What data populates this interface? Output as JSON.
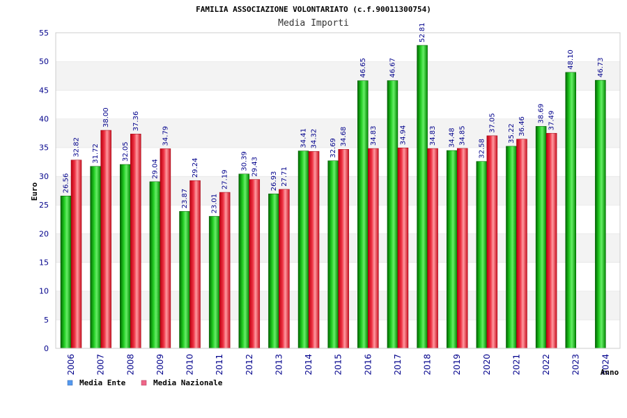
{
  "chart_data": {
    "type": "bar",
    "title": "FAMILIA ASSOCIAZIONE VOLONTARIATO (c.f.90011300754)",
    "subtitle": "Media Importi",
    "xlabel": "Anno",
    "ylabel": "Euro",
    "ylim": [
      0,
      55
    ],
    "yticks": [
      0,
      5,
      10,
      15,
      20,
      25,
      30,
      35,
      40,
      45,
      50,
      55
    ],
    "grid": "horizontal-bands",
    "legend_position": "bottom-left",
    "categories": [
      "2006",
      "2007",
      "2008",
      "2009",
      "2010",
      "2011",
      "2012",
      "2013",
      "2014",
      "2015",
      "2016",
      "2017",
      "2018",
      "2019",
      "2020",
      "2021",
      "2022",
      "2023",
      "2024"
    ],
    "series": [
      {
        "name": "Media Ente",
        "color": "#00b000",
        "legend_color": "#5599ee",
        "values": [
          26.56,
          31.72,
          32.05,
          29.04,
          23.87,
          23.01,
          30.39,
          26.93,
          34.41,
          32.69,
          46.65,
          46.67,
          52.81,
          34.48,
          32.58,
          35.22,
          38.69,
          48.1,
          46.73
        ],
        "labels": [
          "26.56",
          "31.72",
          "32.05",
          "29.04",
          "23.87",
          "23.01",
          "30.39",
          "26.93",
          "34.41",
          "32.69",
          "46.65",
          "46.67",
          "52.81",
          "34.48",
          "32.58",
          "35.22",
          "38.69",
          "48.10",
          "46.73"
        ]
      },
      {
        "name": "Media Nazionale",
        "color": "#e82030",
        "legend_color": "#ee6688",
        "values": [
          32.82,
          38.0,
          37.36,
          34.79,
          29.24,
          27.19,
          29.43,
          27.71,
          34.32,
          34.68,
          34.83,
          34.94,
          34.83,
          34.85,
          37.05,
          36.46,
          37.49,
          null,
          null
        ],
        "labels": [
          "32.82",
          "38.00",
          "37.36",
          "34.79",
          "29.24",
          "27.19",
          "29.43",
          "27.71",
          "34.32",
          "34.68",
          "34.83",
          "34.94",
          "34.83",
          "34.85",
          "37.05",
          "36.46",
          "37.49",
          "",
          ""
        ]
      }
    ]
  }
}
